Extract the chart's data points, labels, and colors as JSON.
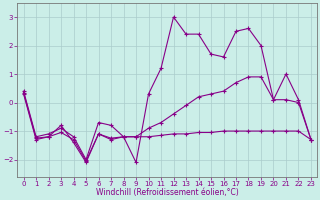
{
  "xlabel": "Windchill (Refroidissement éolien,°C)",
  "bg_color": "#cbeee8",
  "grid_color": "#aacccc",
  "line_color": "#880088",
  "lines": [
    {
      "x": [
        0,
        1,
        2,
        3,
        4,
        5,
        6,
        7,
        8,
        9,
        10,
        11,
        12,
        13,
        14,
        15,
        16,
        17,
        18,
        19,
        20,
        21,
        22,
        23
      ],
      "y": [
        0.4,
        -1.2,
        -1.1,
        -0.9,
        -1.2,
        -2.0,
        -0.7,
        -0.8,
        -1.2,
        -2.1,
        0.3,
        1.2,
        3.0,
        2.4,
        2.4,
        1.7,
        1.6,
        2.5,
        2.6,
        2.0,
        0.1,
        1.0,
        0.1,
        -1.3
      ]
    },
    {
      "x": [
        0,
        1,
        2,
        3,
        4,
        5,
        6,
        7,
        8,
        9,
        10,
        11,
        12,
        13,
        14,
        15,
        16,
        17,
        18,
        19,
        20,
        21,
        22,
        23
      ],
      "y": [
        0.3,
        -1.3,
        -1.2,
        -0.8,
        -1.4,
        -2.1,
        -1.1,
        -1.3,
        -1.2,
        -1.2,
        -0.9,
        -0.7,
        -0.4,
        -0.1,
        0.2,
        0.3,
        0.4,
        0.7,
        0.9,
        0.9,
        0.1,
        0.1,
        0.0,
        -1.3
      ]
    },
    {
      "x": [
        0,
        1,
        2,
        3,
        4,
        5,
        6,
        7,
        8,
        9,
        10,
        11,
        12,
        13,
        14,
        15,
        16,
        17,
        18,
        19,
        20,
        21,
        22,
        23
      ],
      "y": [
        0.35,
        -1.25,
        -1.2,
        -1.05,
        -1.3,
        -2.05,
        -1.1,
        -1.25,
        -1.2,
        -1.2,
        -1.2,
        -1.15,
        -1.1,
        -1.1,
        -1.05,
        -1.05,
        -1.0,
        -1.0,
        -1.0,
        -1.0,
        -1.0,
        -1.0,
        -1.0,
        -1.3
      ]
    }
  ],
  "ylim": [
    -2.6,
    3.5
  ],
  "xlim": [
    -0.5,
    23.5
  ],
  "yticks": [
    -2,
    -1,
    0,
    1,
    2,
    3
  ],
  "xticks": [
    0,
    1,
    2,
    3,
    4,
    5,
    6,
    7,
    8,
    9,
    10,
    11,
    12,
    13,
    14,
    15,
    16,
    17,
    18,
    19,
    20,
    21,
    22,
    23
  ],
  "tick_fontsize": 5.0,
  "xlabel_fontsize": 5.5
}
